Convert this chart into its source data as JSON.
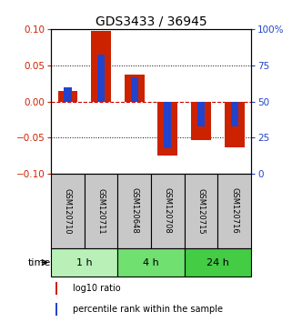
{
  "title": "GDS3433 / 36945",
  "samples": [
    "GSM120710",
    "GSM120711",
    "GSM120648",
    "GSM120708",
    "GSM120715",
    "GSM120716"
  ],
  "log10_ratio": [
    0.015,
    0.097,
    0.037,
    -0.075,
    -0.053,
    -0.063
  ],
  "percentile_rank": [
    0.02,
    0.065,
    0.033,
    -0.065,
    -0.034,
    -0.034
  ],
  "groups": [
    {
      "label": "1 h",
      "indices": [
        0,
        1
      ],
      "color": "#b8f0b8"
    },
    {
      "label": "4 h",
      "indices": [
        2,
        3
      ],
      "color": "#70e070"
    },
    {
      "label": "24 h",
      "indices": [
        4,
        5
      ],
      "color": "#44cc44"
    }
  ],
  "red_color": "#cc2200",
  "blue_color": "#2244cc",
  "ylim": [
    -0.1,
    0.1
  ],
  "yticks_left": [
    -0.1,
    -0.05,
    0,
    0.05,
    0.1
  ],
  "grid_color": "#000000",
  "zero_line_color": "#cc0000",
  "sample_box_color": "#c8c8c8",
  "title_fontsize": 10,
  "tick_fontsize": 7.5,
  "sample_fontsize": 6,
  "legend_fontsize": 7,
  "time_label": "time",
  "legend_red": "log10 ratio",
  "legend_blue": "percentile rank within the sample"
}
